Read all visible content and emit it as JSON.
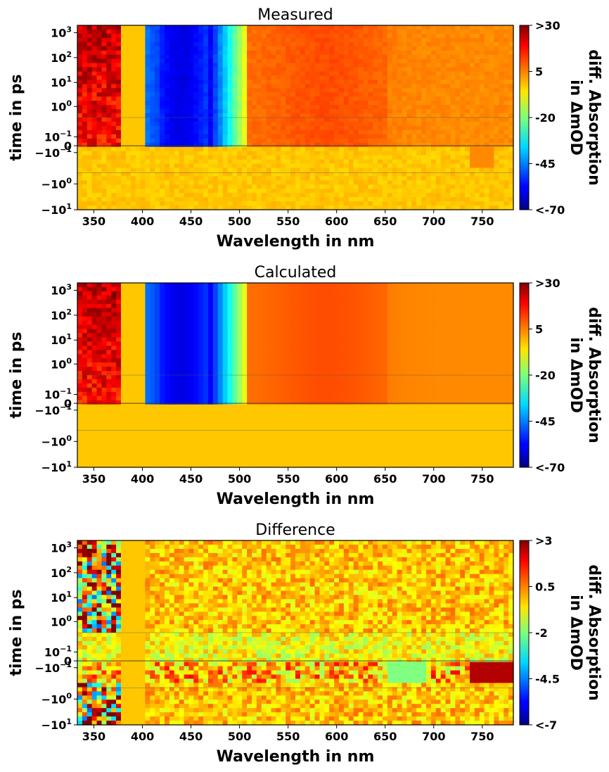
{
  "chart_data": [
    {
      "type": "heatmap",
      "title": "Measured",
      "xlabel": "Wavelength in nm",
      "ylabel": "time in ps",
      "xlim": [
        333,
        782
      ],
      "x_ticks": [
        "350",
        "400",
        "450",
        "500",
        "550",
        "600",
        "650",
        "700",
        "750"
      ],
      "y_ticks": [
        {
          "base": "10",
          "exp": "3"
        },
        {
          "base": "10",
          "exp": "2"
        },
        {
          "base": "10",
          "exp": "1"
        },
        {
          "base": "10",
          "exp": "0"
        },
        {
          "base": "10",
          "exp": "−1"
        },
        {
          "base": "0",
          "exp": ""
        },
        {
          "base": "−10",
          "exp": "−1"
        },
        {
          "base": "−10",
          "exp": "0"
        },
        {
          "base": "−10",
          "exp": "1"
        }
      ],
      "yscale": "symlog",
      "colorbar": {
        "label_line1": "diff. Absorption",
        "label_line2": "in ΔmOD",
        "ticks": [
          ">30",
          "5",
          "-20",
          "-45",
          "<-70"
        ],
        "range": [
          -70,
          30
        ],
        "colormap": "jet"
      }
    },
    {
      "type": "heatmap",
      "title": "Calculated",
      "xlabel": "Wavelength in nm",
      "ylabel": "time in ps",
      "xlim": [
        333,
        782
      ],
      "x_ticks": [
        "350",
        "400",
        "450",
        "500",
        "550",
        "600",
        "650",
        "700",
        "750"
      ],
      "y_ticks": [
        {
          "base": "10",
          "exp": "3"
        },
        {
          "base": "10",
          "exp": "2"
        },
        {
          "base": "10",
          "exp": "1"
        },
        {
          "base": "10",
          "exp": "0"
        },
        {
          "base": "10",
          "exp": "−1"
        },
        {
          "base": "0",
          "exp": ""
        },
        {
          "base": "−10",
          "exp": "−1"
        },
        {
          "base": "−10",
          "exp": "0"
        },
        {
          "base": "−10",
          "exp": "1"
        }
      ],
      "yscale": "symlog",
      "colorbar": {
        "label_line1": "diff. Absorption",
        "label_line2": "in ΔmOD",
        "ticks": [
          ">30",
          "5",
          "-20",
          "-45",
          "<-70"
        ],
        "range": [
          -70,
          30
        ],
        "colormap": "jet"
      }
    },
    {
      "type": "heatmap",
      "title": "Difference",
      "xlabel": "Wavelength in nm",
      "ylabel": "time in ps",
      "xlim": [
        333,
        782
      ],
      "x_ticks": [
        "350",
        "400",
        "450",
        "500",
        "550",
        "600",
        "650",
        "700",
        "750"
      ],
      "y_ticks": [
        {
          "base": "10",
          "exp": "3"
        },
        {
          "base": "10",
          "exp": "2"
        },
        {
          "base": "10",
          "exp": "1"
        },
        {
          "base": "10",
          "exp": "0"
        },
        {
          "base": "10",
          "exp": "−1"
        },
        {
          "base": "0",
          "exp": ""
        },
        {
          "base": "−10",
          "exp": "−1"
        },
        {
          "base": "−10",
          "exp": "0"
        },
        {
          "base": "−10",
          "exp": "1"
        }
      ],
      "yscale": "symlog",
      "colorbar": {
        "label_line1": "diff. Absorption",
        "label_line2": "in ΔmOD",
        "ticks": [
          ">3",
          "0.5",
          "-2",
          "-4.5",
          "<-7"
        ],
        "range": [
          -7,
          3
        ],
        "colormap": "jet"
      }
    }
  ]
}
